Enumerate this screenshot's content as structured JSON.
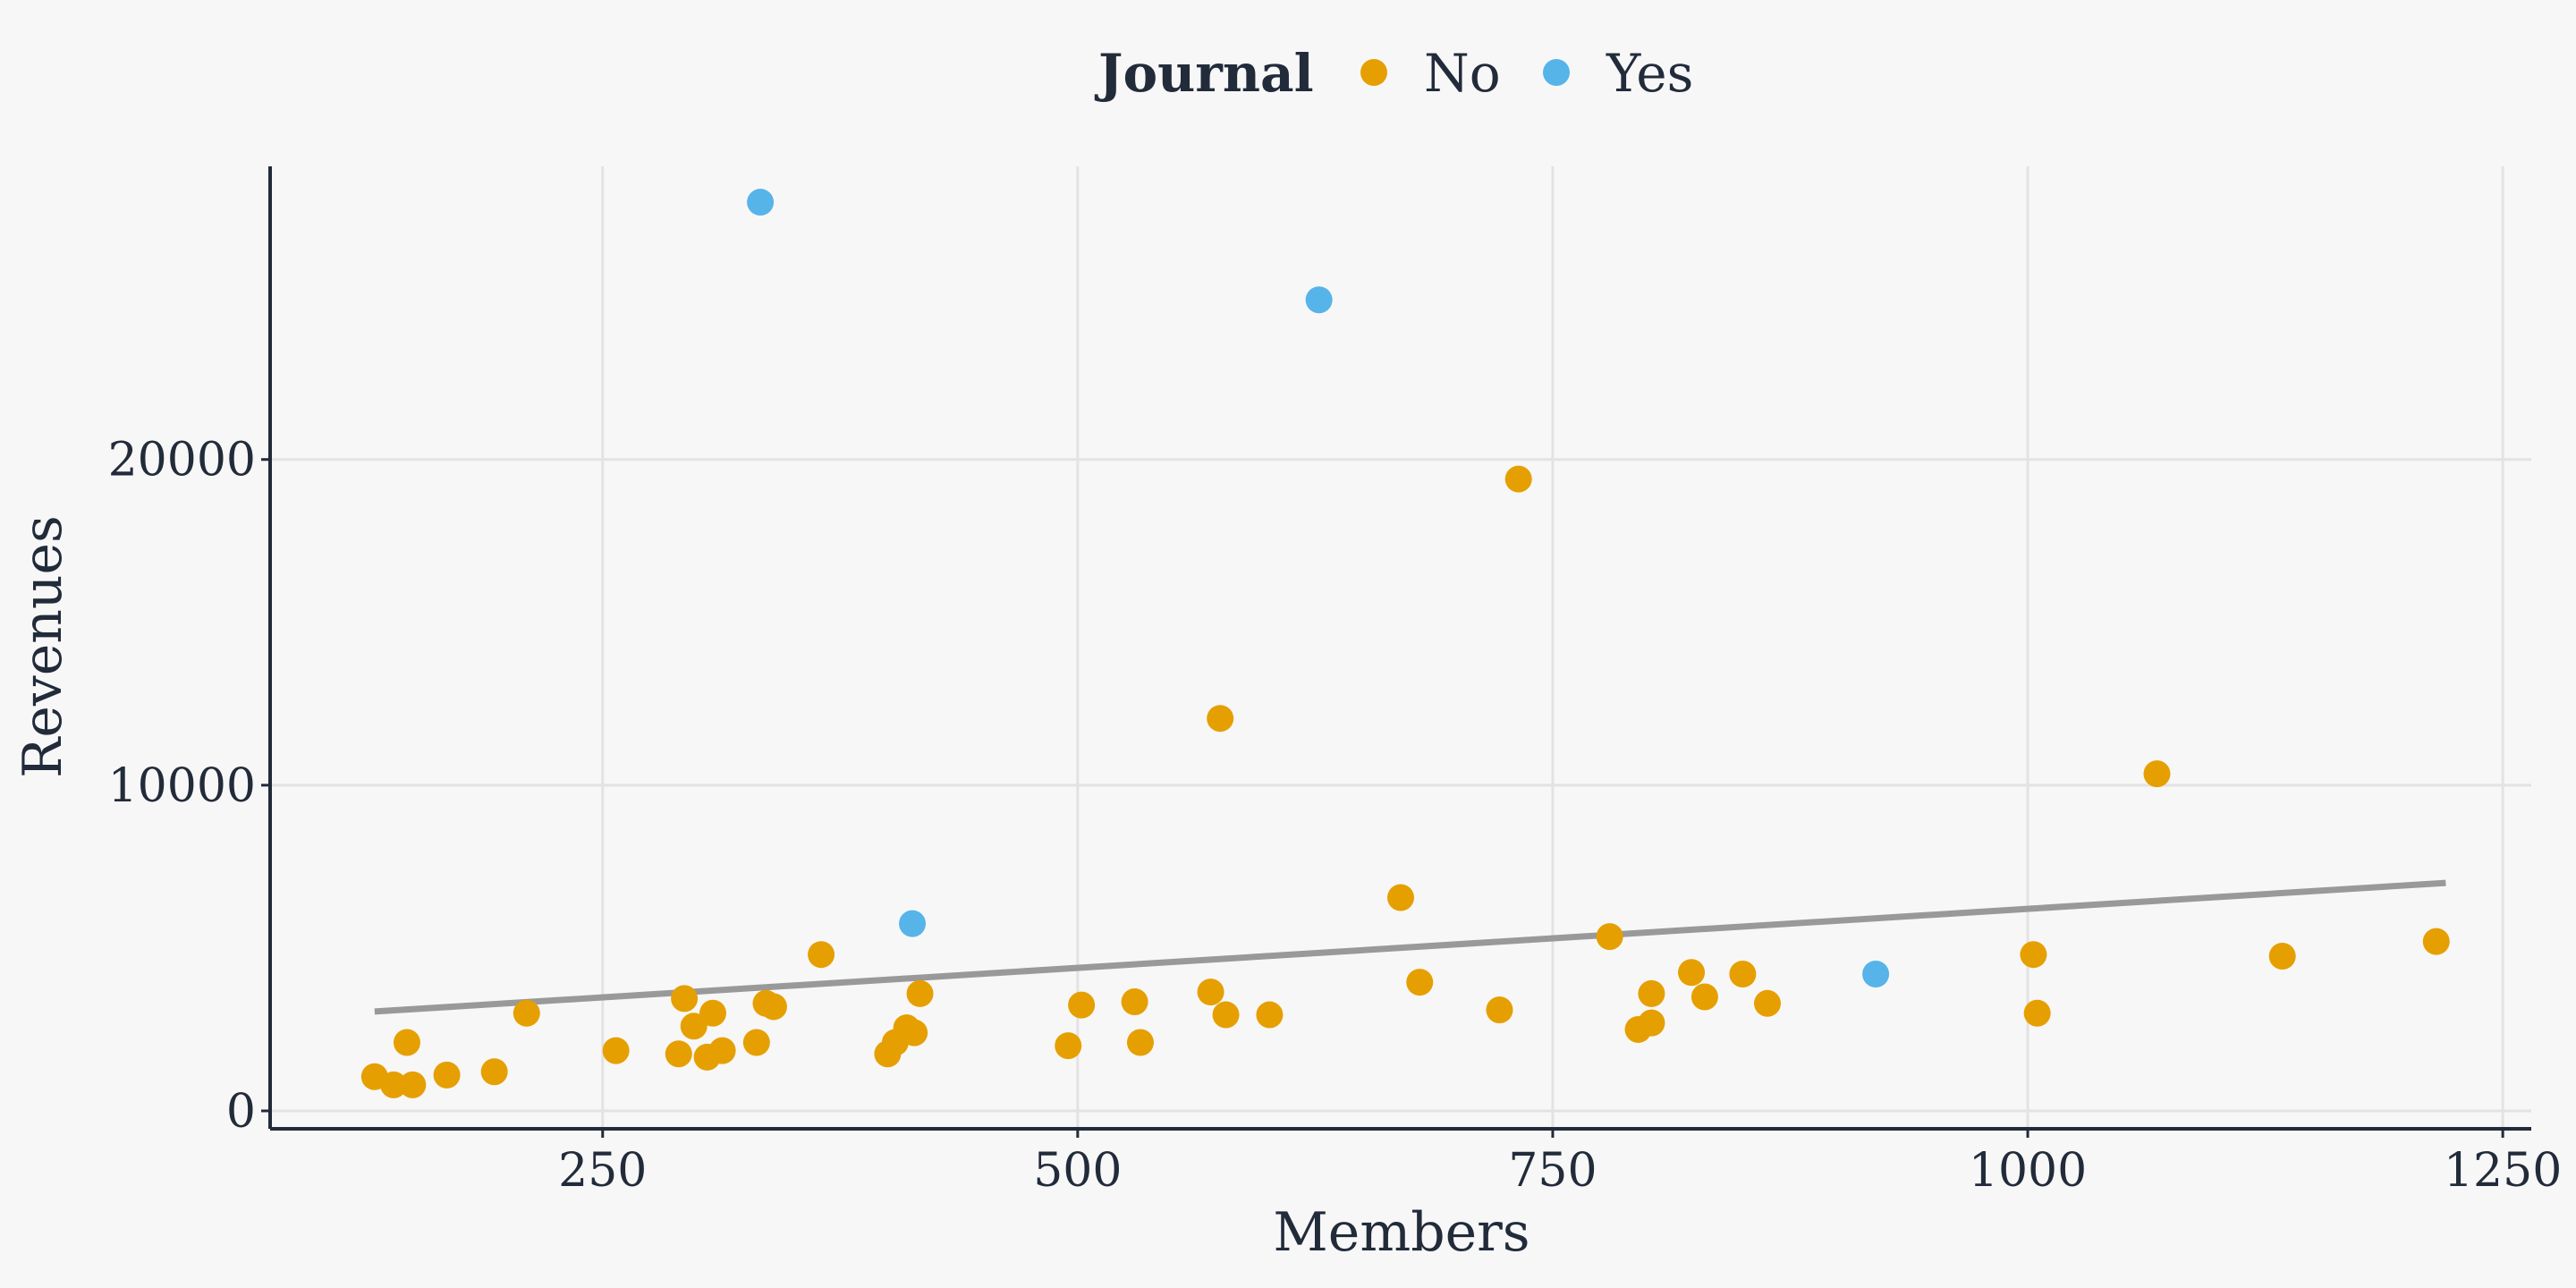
{
  "chart_data": {
    "type": "scatter",
    "title": "",
    "xlabel": "Members",
    "ylabel": "Revenues",
    "xlim": [
      75,
      1265
    ],
    "ylim": [
      -550,
      29000
    ],
    "x_ticks": [
      250,
      500,
      750,
      1000,
      1250
    ],
    "y_ticks": [
      0,
      10000,
      20000
    ],
    "grid": true,
    "legend": {
      "title": "Journal",
      "placement": "top",
      "entries": [
        {
          "label": "No",
          "color": "#E69F00"
        },
        {
          "label": "Yes",
          "color": "#56B4E9"
        }
      ]
    },
    "trend_line": {
      "color": "#999999",
      "x": [
        130,
        1220
      ],
      "y": [
        3050,
        7000
      ]
    },
    "series": [
      {
        "name": "No",
        "color": "#E69F00",
        "points": [
          [
            130,
            1050
          ],
          [
            140,
            800
          ],
          [
            147,
            2100
          ],
          [
            150,
            800
          ],
          [
            168,
            1100
          ],
          [
            193,
            1200
          ],
          [
            210,
            3000
          ],
          [
            257,
            1850
          ],
          [
            290,
            1750
          ],
          [
            293,
            3450
          ],
          [
            298,
            2600
          ],
          [
            305,
            1650
          ],
          [
            308,
            3000
          ],
          [
            313,
            1850
          ],
          [
            331,
            2100
          ],
          [
            336,
            3300
          ],
          [
            340,
            3200
          ],
          [
            365,
            4800
          ],
          [
            400,
            1750
          ],
          [
            404,
            2100
          ],
          [
            410,
            2550
          ],
          [
            414,
            2400
          ],
          [
            417,
            3600
          ],
          [
            495,
            2000
          ],
          [
            502,
            3250
          ],
          [
            530,
            3350
          ],
          [
            533,
            2100
          ],
          [
            570,
            3650
          ],
          [
            575,
            12050
          ],
          [
            578,
            2950
          ],
          [
            601,
            2950
          ],
          [
            670,
            6550
          ],
          [
            680,
            3950
          ],
          [
            722,
            3100
          ],
          [
            732,
            19400
          ],
          [
            780,
            5350
          ],
          [
            795,
            2500
          ],
          [
            802,
            2700
          ],
          [
            802,
            3600
          ],
          [
            823,
            4250
          ],
          [
            830,
            3500
          ],
          [
            850,
            4200
          ],
          [
            863,
            3300
          ],
          [
            1003,
            4800
          ],
          [
            1005,
            3000
          ],
          [
            1068,
            10350
          ],
          [
            1134,
            4750
          ],
          [
            1215,
            5200
          ]
        ]
      },
      {
        "name": "Yes",
        "color": "#56B4E9",
        "points": [
          [
            333,
            27900
          ],
          [
            413,
            5750
          ],
          [
            627,
            24900
          ],
          [
            920,
            4200
          ]
        ]
      }
    ]
  }
}
